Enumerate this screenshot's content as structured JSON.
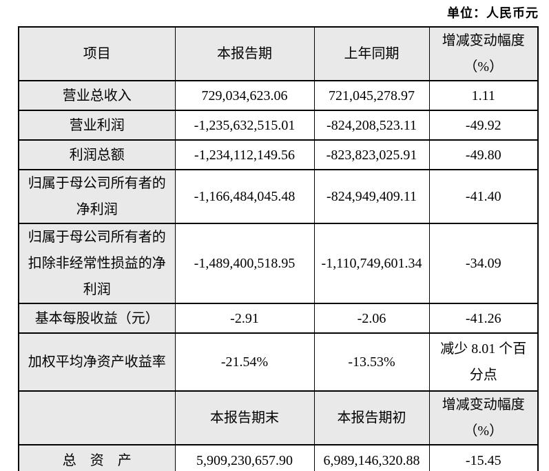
{
  "unit_label": "单位：人民币元",
  "colors": {
    "header_bg": "#e9e9e9",
    "border": "#000000",
    "text": "#000000",
    "page_bg": "#ffffff"
  },
  "table": {
    "header1": {
      "item": "项目",
      "current": "本报告期",
      "prior": "上年同期",
      "change": "增减变动幅度\n（%）"
    },
    "rows": [
      {
        "item": "营业总收入",
        "current": "729,034,623.06",
        "prior": "721,045,278.97",
        "change": "1.11"
      },
      {
        "item": "营业利润",
        "current": "-1,235,632,515.01",
        "prior": "-824,208,523.11",
        "change": "-49.92"
      },
      {
        "item": "利润总额",
        "current": "-1,234,112,149.56",
        "prior": "-823,823,025.91",
        "change": "-49.80"
      },
      {
        "item": "归属于母公司所有者的\n净利润",
        "current": "-1,166,484,045.48",
        "prior": "-824,949,409.11",
        "change": "-41.40"
      },
      {
        "item": "归属于母公司所有者的\n扣除非经常性损益的净\n利润",
        "current": "-1,489,400,518.95",
        "prior": "-1,110,749,601.34",
        "change": "-34.09"
      },
      {
        "item": "基本每股收益（元）",
        "current": "-2.91",
        "prior": "-2.06",
        "change": "-41.26"
      },
      {
        "item": "加权平均净资产收益率",
        "current": "-21.54%",
        "prior": "-13.53%",
        "change": "减少 8.01 个百\n分点"
      }
    ],
    "header2": {
      "item": "",
      "current": "本报告期末",
      "prior": "本报告期初",
      "change": "增减变动幅度\n（%）"
    },
    "rows2": [
      {
        "item": "总　资　产",
        "current": "5,909,230,657.90",
        "prior": "6,989,146,320.88",
        "change": "-15.45"
      }
    ]
  }
}
